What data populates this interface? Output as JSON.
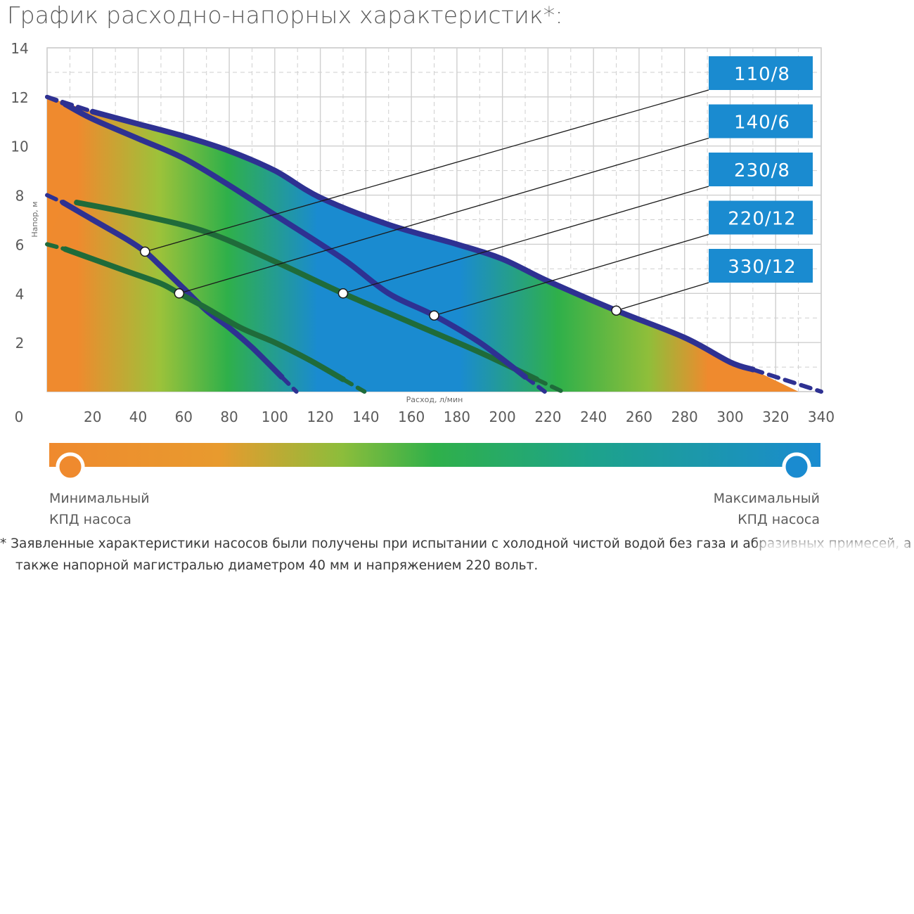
{
  "title": "График расходно-напорных характеристик*:",
  "chart_data": {
    "type": "line",
    "xlabel": "Расход, л/мин",
    "ylabel": "Напор, м",
    "xlim": [
      0,
      340
    ],
    "ylim": [
      0,
      14
    ],
    "x_ticks": [
      "0",
      "20",
      "40",
      "60",
      "80",
      "100",
      "120",
      "140",
      "160",
      "180",
      "200",
      "220",
      "240",
      "260",
      "280",
      "300",
      "320",
      "340"
    ],
    "y_ticks": [
      "2",
      "4",
      "6",
      "8",
      "10",
      "12",
      "14"
    ],
    "grid": true,
    "series": [
      {
        "name": "110/8",
        "color": "#2e3192",
        "points": [
          [
            7,
            7.7
          ],
          [
            20,
            7
          ],
          [
            35,
            6.2
          ],
          [
            43,
            5.7
          ],
          [
            50,
            5.1
          ],
          [
            60,
            4.2
          ],
          [
            70,
            3.3
          ],
          [
            80,
            2.6
          ],
          [
            90,
            1.8
          ],
          [
            103,
            0.6
          ]
        ],
        "marker": [
          43,
          5.7
        ]
      },
      {
        "name": "140/6",
        "color": "#1f6b3a",
        "points": [
          [
            8,
            5.8
          ],
          [
            20,
            5.4
          ],
          [
            35,
            4.9
          ],
          [
            50,
            4.4
          ],
          [
            58,
            4.0
          ],
          [
            70,
            3.4
          ],
          [
            85,
            2.6
          ],
          [
            100,
            2
          ],
          [
            115,
            1.3
          ],
          [
            130,
            0.5
          ]
        ],
        "marker": [
          58,
          4.0
        ]
      },
      {
        "name": "230/8",
        "color": "#1f6b3a",
        "points": [
          [
            13,
            7.7
          ],
          [
            40,
            7.2
          ],
          [
            70,
            6.5
          ],
          [
            100,
            5.3
          ],
          [
            130,
            4.0
          ],
          [
            160,
            2.8
          ],
          [
            190,
            1.6
          ],
          [
            215,
            0.5
          ]
        ],
        "marker": [
          130,
          4.0
        ]
      },
      {
        "name": "220/12",
        "color": "#2e3192",
        "points": [
          [
            8,
            11.7
          ],
          [
            20,
            11.1
          ],
          [
            40,
            10.3
          ],
          [
            60,
            9.5
          ],
          [
            80,
            8.4
          ],
          [
            100,
            7.2
          ],
          [
            130,
            5.4
          ],
          [
            150,
            4.0
          ],
          [
            170,
            3.1
          ],
          [
            190,
            2.0
          ],
          [
            210,
            0.6
          ]
        ],
        "marker": [
          170,
          3.1
        ]
      },
      {
        "name": "330/12",
        "color": "#2e3192",
        "points": [
          [
            20,
            11.4
          ],
          [
            40,
            10.9
          ],
          [
            60,
            10.4
          ],
          [
            80,
            9.8
          ],
          [
            100,
            9.0
          ],
          [
            120,
            7.9
          ],
          [
            150,
            6.8
          ],
          [
            180,
            6.0
          ],
          [
            200,
            5.4
          ],
          [
            220,
            4.5
          ],
          [
            250,
            3.3
          ],
          [
            280,
            2.2
          ],
          [
            300,
            1.2
          ],
          [
            310,
            0.9
          ]
        ],
        "marker": [
          250,
          3.3
        ]
      }
    ],
    "extensions_dashed": {
      "110/8": [
        [
          0,
          8
        ],
        [
          7,
          7.7
        ]
      ],
      "140/6": [
        [
          0,
          6
        ],
        [
          8,
          5.8
        ]
      ],
      "220/12": [
        [
          0,
          12
        ],
        [
          8,
          11.7
        ]
      ],
      "330/12": [
        [
          0,
          12
        ],
        [
          20,
          11.4
        ]
      ]
    },
    "colorbar": {
      "min_color": "#ef8a2e",
      "mid_color": "#2fb04a",
      "max_color": "#1a8bd0"
    }
  },
  "legend": {
    "min_line1": "Минимальный",
    "min_line2": "КПД насоса",
    "max_line1": "Максимальный",
    "max_line2": "КПД насоса"
  },
  "footnote": {
    "line1": "* Заявленные характеристики насосов были получены при испытании с холодной чистой водой без газа и абразивных примесей, а",
    "line2": "также напорной магистралью диаметром 40 мм и напряжением 220 вольт."
  }
}
